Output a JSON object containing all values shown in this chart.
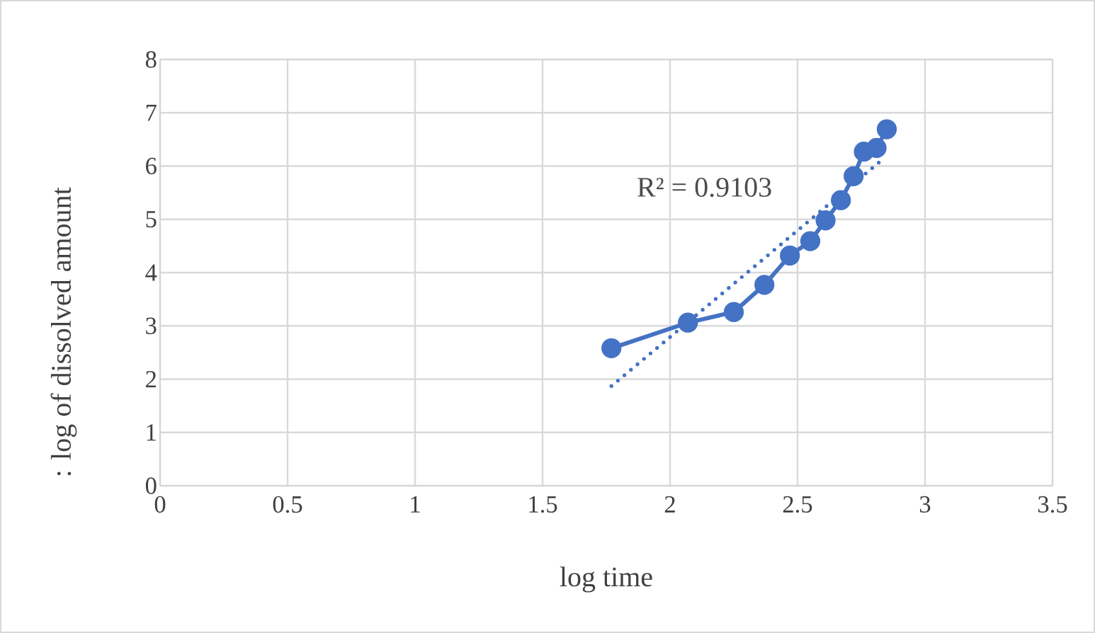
{
  "chart_data": {
    "type": "line",
    "xlabel": "log time",
    "ylabel": ": log of dissolved amount",
    "annotations": [
      "R² = 0.9103"
    ],
    "xlim": [
      0,
      3.5
    ],
    "xticks": [
      0,
      0.5,
      1,
      1.5,
      2,
      2.5,
      3,
      3.5
    ],
    "ylim": [
      0,
      8
    ],
    "yticks": [
      0,
      1,
      2,
      3,
      4,
      5,
      6,
      7,
      8
    ],
    "grid": true,
    "series": [
      {
        "color": "#4472c4",
        "marker": "circle",
        "line_style": "solid",
        "x": [
          1.77,
          2.07,
          2.25,
          2.37,
          2.47,
          2.55,
          2.61,
          2.67,
          2.72,
          2.76,
          2.81,
          2.85
        ],
        "values": [
          2.58,
          3.06,
          3.26,
          3.77,
          4.32,
          4.59,
          4.98,
          5.36,
          5.81,
          6.27,
          6.34,
          6.69
        ]
      },
      {
        "color": "#4472c4",
        "marker": "none",
        "line_style": "dotted",
        "x": [
          1.77,
          2.83
        ],
        "values": [
          1.87,
          6.11
        ]
      }
    ]
  }
}
